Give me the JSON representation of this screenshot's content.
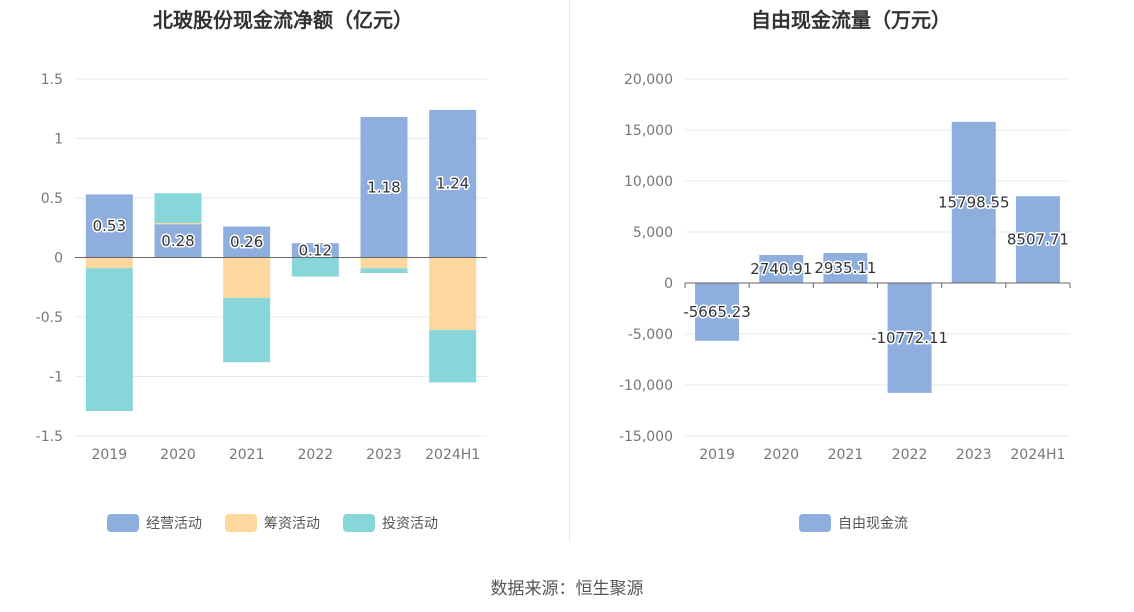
{
  "chart_data": [
    {
      "type": "bar",
      "stacked": true,
      "title": "北玻股份现金流净额（亿元）",
      "categories": [
        "2019",
        "2020",
        "2021",
        "2022",
        "2023",
        "2024H1"
      ],
      "ylim": [
        -1.5,
        1.5
      ],
      "yticks": [
        "1.5",
        "1",
        "0.5",
        "0",
        "-0.5",
        "-1",
        "-1.5"
      ],
      "grid": true,
      "legend_position": "bottom",
      "series": [
        {
          "name": "经营活动",
          "color": "#8eaedd",
          "values": [
            0.53,
            0.28,
            0.26,
            0.12,
            1.18,
            1.24
          ],
          "labels": [
            "0.53",
            "0.28",
            "0.26",
            "0.12",
            "1.18",
            "1.24"
          ]
        },
        {
          "name": "筹资活动",
          "color": "#fdd89e",
          "values": [
            -0.09,
            0.01,
            -0.34,
            0.0,
            -0.09,
            -0.61
          ]
        },
        {
          "name": "投资活动",
          "color": "#87d6da",
          "values": [
            -1.2,
            0.25,
            -0.54,
            -0.16,
            -0.04,
            -0.44
          ]
        }
      ]
    },
    {
      "type": "bar",
      "title": "自由现金流量（万元）",
      "categories": [
        "2019",
        "2020",
        "2021",
        "2022",
        "2023",
        "2024H1"
      ],
      "ylim": [
        -15000,
        20000
      ],
      "yticks": [
        "20,000",
        "15,000",
        "10,000",
        "5,000",
        "0",
        "-5,000",
        "-10,000",
        "-15,000"
      ],
      "grid": true,
      "legend_position": "bottom",
      "series": [
        {
          "name": "自由现金流",
          "color": "#8eaedd",
          "values": [
            -5665.23,
            2740.91,
            2935.11,
            -10772.11,
            15798.55,
            8507.71
          ],
          "labels": [
            "-5665.23",
            "2740.91",
            "2935.11",
            "-10772.11",
            "15798.55",
            "8507.71"
          ]
        }
      ]
    }
  ],
  "source": "数据来源：恒生聚源"
}
